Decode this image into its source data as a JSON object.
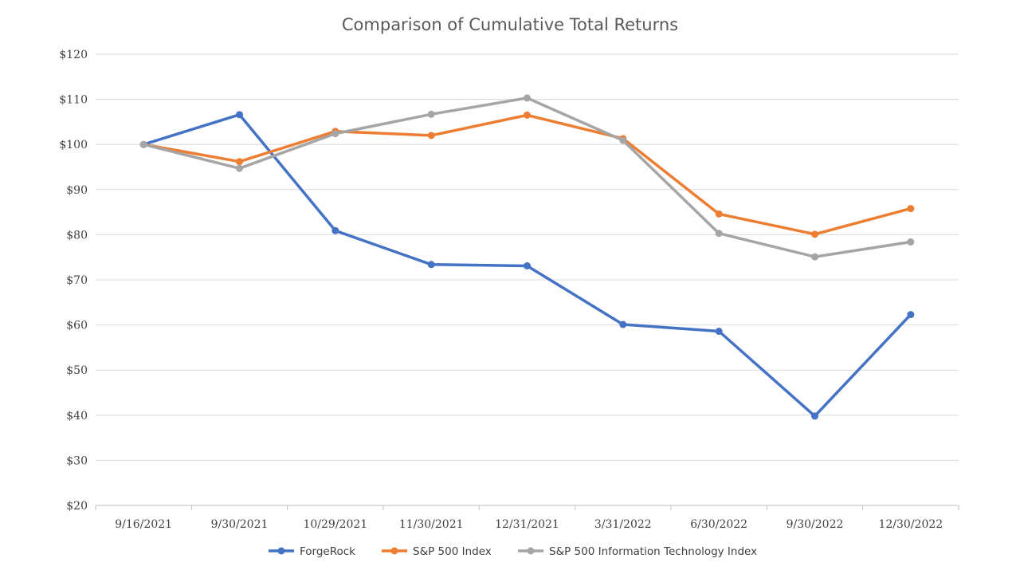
{
  "chart_data": {
    "type": "line",
    "title": "Comparison of Cumulative Total Returns",
    "xlabel": "",
    "ylabel": "",
    "categories": [
      "9/16/2021",
      "9/30/2021",
      "10/29/2021",
      "11/30/2021",
      "12/31/2021",
      "3/31/2022",
      "6/30/2022",
      "9/30/2022",
      "12/30/2022"
    ],
    "ylim": [
      20,
      120
    ],
    "yticks": [
      "$20",
      "$30",
      "$40",
      "$50",
      "$60",
      "$70",
      "$80",
      "$90",
      "$100",
      "$110",
      "$120"
    ],
    "yticks_values": [
      20,
      30,
      40,
      50,
      60,
      70,
      80,
      90,
      100,
      110,
      120
    ],
    "grid": true,
    "legend_position": "bottom",
    "series": [
      {
        "name": "ForgeRock",
        "color": "#4472c4",
        "values": [
          100,
          106.6,
          80.9,
          73.4,
          73.1,
          60.1,
          58.6,
          39.8,
          62.3
        ]
      },
      {
        "name": "S&P 500 Index",
        "color": "#ed7d31",
        "values": [
          100,
          96.2,
          102.9,
          102.0,
          106.5,
          101.3,
          84.6,
          80.1,
          85.8
        ]
      },
      {
        "name": "S&P 500 Information Technology Index",
        "color": "#a5a5a5",
        "values": [
          100,
          94.7,
          102.4,
          106.7,
          110.3,
          100.9,
          80.3,
          75.1,
          78.4
        ]
      }
    ]
  }
}
